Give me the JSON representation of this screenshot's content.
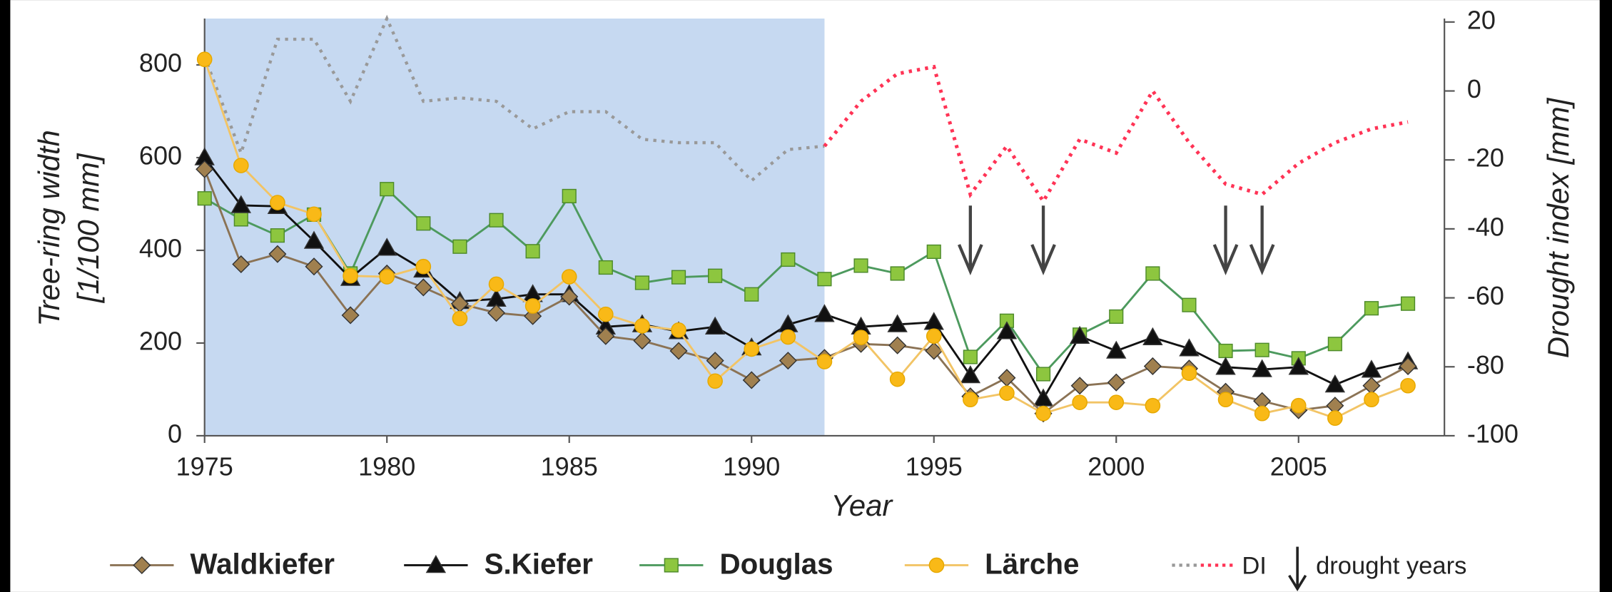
{
  "chart_data": {
    "type": "line",
    "xlabel": "Year",
    "ylabel": [
      "Tree-ring width",
      "[1/100 mm]"
    ],
    "y2label": "Drought index [mm]",
    "x": [
      1975,
      1976,
      1977,
      1978,
      1979,
      1980,
      1981,
      1982,
      1983,
      1984,
      1985,
      1986,
      1987,
      1988,
      1989,
      1990,
      1991,
      1992,
      1993,
      1994,
      1995,
      1996,
      1997,
      1998,
      1999,
      2000,
      2001,
      2002,
      2003,
      2004,
      2005,
      2006,
      2007,
      2008
    ],
    "xlim": [
      1975,
      2009
    ],
    "xticks": [
      1975,
      1980,
      1985,
      1990,
      1995,
      2000,
      2005
    ],
    "ylim": [
      0,
      900
    ],
    "yticks": [
      0,
      200,
      400,
      600,
      800
    ],
    "y2lim": [
      -100,
      21
    ],
    "y2ticks": [
      -100,
      -80,
      -60,
      -40,
      -20,
      0,
      20
    ],
    "shaded_range": [
      1975,
      1992
    ],
    "shade_color": "#c6d9f1",
    "series": [
      {
        "name": "Douglas",
        "color": "#4d9a5e",
        "marker": "square",
        "marker_color": "#8dc63f",
        "legend_color": "#17a34a",
        "values": [
          512,
          467,
          432,
          477,
          350,
          532,
          458,
          408,
          465,
          398,
          517,
          363,
          330,
          342,
          345,
          305,
          380,
          338,
          367,
          350,
          397,
          170,
          248,
          133,
          218,
          257,
          350,
          282,
          183,
          185,
          167,
          198,
          275,
          285
        ]
      },
      {
        "name": "S.Kiefer",
        "color": "#111111",
        "marker": "triangle",
        "marker_color": "#111111",
        "legend_color": "#a8a8a8",
        "values": [
          600,
          497,
          495,
          420,
          340,
          405,
          358,
          290,
          295,
          305,
          305,
          235,
          240,
          225,
          235,
          190,
          240,
          262,
          235,
          240,
          245,
          130,
          225,
          80,
          215,
          183,
          212,
          188,
          148,
          143,
          148,
          110,
          142,
          160
        ]
      },
      {
        "name": "Waldkiefer",
        "color": "#8b7355",
        "marker": "diamond",
        "marker_color": "#a0804f",
        "legend_color": "#8b6914",
        "values": [
          575,
          370,
          392,
          365,
          260,
          350,
          320,
          285,
          265,
          258,
          300,
          215,
          205,
          183,
          162,
          120,
          162,
          168,
          198,
          195,
          183,
          85,
          125,
          48,
          108,
          115,
          150,
          145,
          95,
          75,
          55,
          65,
          108,
          150
        ]
      },
      {
        "name": "Lärche",
        "color": "#f2c465",
        "marker": "circle",
        "marker_color": "#f9b917",
        "legend_color": "#e8b04b",
        "values": [
          812,
          583,
          503,
          478,
          345,
          343,
          365,
          253,
          327,
          280,
          343,
          262,
          237,
          228,
          118,
          187,
          213,
          160,
          212,
          122,
          215,
          78,
          92,
          48,
          72,
          72,
          65,
          135,
          78,
          48,
          65,
          38,
          78,
          108
        ]
      },
      {
        "name": "DI",
        "color": "#999999",
        "color_after": "#ff3355",
        "axis": "y2",
        "style": "dotted",
        "legend_color": "#111111",
        "values": [
          10,
          -18,
          15,
          15,
          -3,
          21,
          -3,
          -2,
          -3,
          -11,
          -6,
          -6,
          -14,
          -15,
          -15,
          -26,
          -17,
          -16,
          -3,
          5,
          7,
          -30,
          -16,
          -32,
          -14,
          -18,
          0,
          -15,
          -27,
          -30,
          -21,
          -15,
          -11,
          -9
        ]
      }
    ],
    "legend_order": [
      "Waldkiefer",
      "S.Kiefer",
      "Douglas",
      "Lärche",
      "DI"
    ],
    "drought_years": [
      1996,
      1998,
      2003,
      2004
    ],
    "drought_label": "drought years"
  }
}
